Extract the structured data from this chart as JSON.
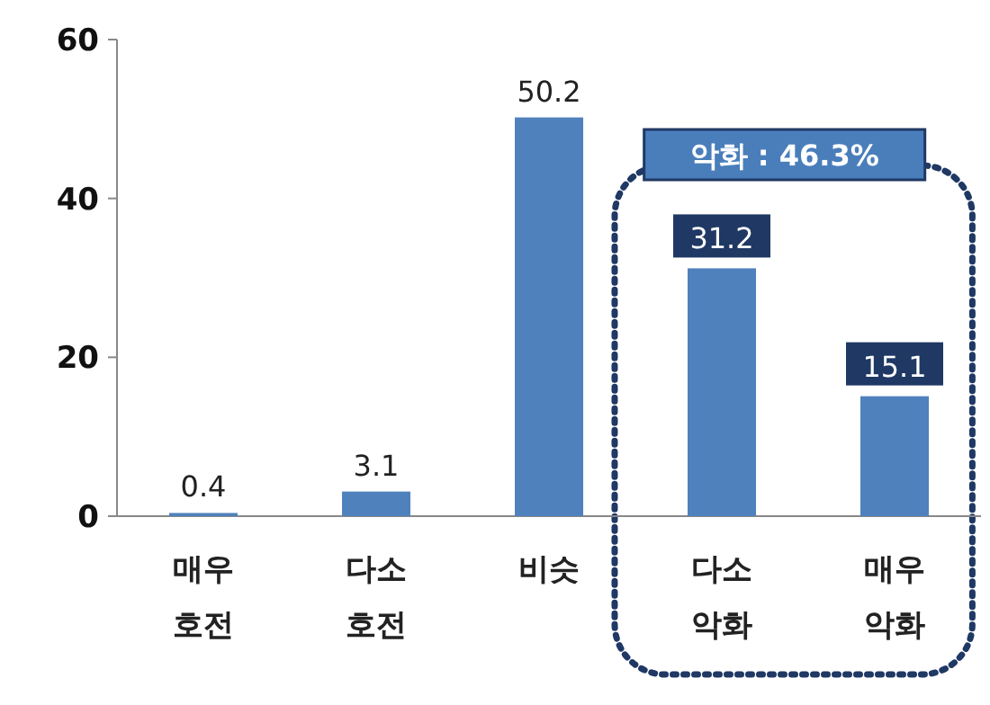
{
  "chart_data": {
    "type": "bar",
    "categories": [
      "매우\n호전",
      "다소\n호전",
      "비슷",
      "다소\n악화",
      "매우\n악화"
    ],
    "values": [
      0.4,
      3.1,
      50.2,
      31.2,
      15.1
    ],
    "color": "#4f81bd",
    "ylim": [
      0,
      60
    ],
    "yticks": [
      0,
      20,
      40,
      60
    ],
    "data_labels": true,
    "annotations": [
      "악화 : 46.3%"
    ]
  }
}
